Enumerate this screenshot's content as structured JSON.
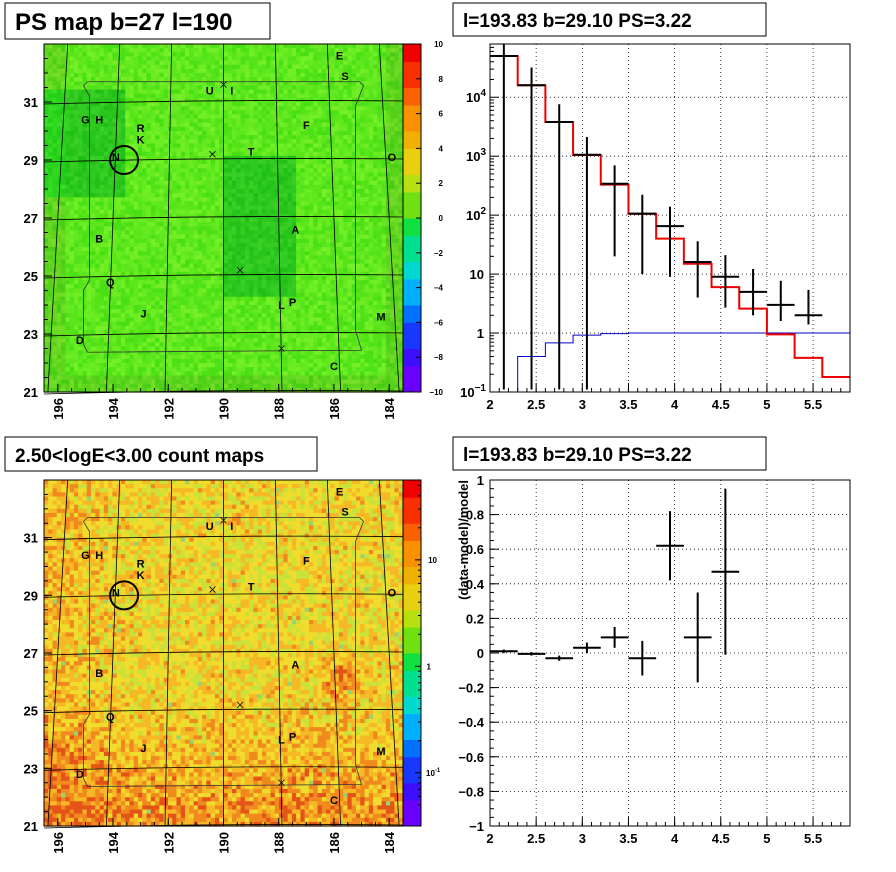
{
  "chart_data": [
    {
      "type": "heatmap",
      "title": "PS map b=27 l=190",
      "x_ticks": [
        "196",
        "194",
        "192",
        "190",
        "188",
        "186",
        "184"
      ],
      "y_ticks": [
        "21",
        "23",
        "25",
        "27",
        "29",
        "31"
      ],
      "xlim": [
        196.5,
        183.5
      ],
      "ylim": [
        21,
        33
      ],
      "colorbar_ticks": [
        "10",
        "8",
        "6",
        "4",
        "2",
        "0",
        "−2",
        "−4",
        "−6",
        "−8",
        "−10"
      ],
      "zlim": [
        -10,
        10
      ],
      "sources": [
        {
          "label": "E",
          "l": 185.8,
          "b": 32.6
        },
        {
          "label": "S",
          "l": 185.6,
          "b": 31.9
        },
        {
          "label": "U",
          "l": 190.5,
          "b": 31.4
        },
        {
          "label": "I",
          "l": 189.7,
          "b": 31.4
        },
        {
          "label": "G",
          "l": 195.0,
          "b": 30.4
        },
        {
          "label": "H",
          "l": 194.5,
          "b": 30.4
        },
        {
          "label": "R",
          "l": 193.0,
          "b": 30.1
        },
        {
          "label": "K",
          "l": 193.0,
          "b": 29.7
        },
        {
          "label": "F",
          "l": 187.0,
          "b": 30.2
        },
        {
          "label": "T",
          "l": 189.0,
          "b": 29.3
        },
        {
          "label": "O",
          "l": 183.9,
          "b": 29.1
        },
        {
          "label": "N",
          "l": 193.9,
          "b": 29.1
        },
        {
          "label": "B",
          "l": 194.5,
          "b": 26.3
        },
        {
          "label": "A",
          "l": 187.4,
          "b": 26.6
        },
        {
          "label": "Q",
          "l": 194.1,
          "b": 24.8
        },
        {
          "label": "L",
          "l": 187.9,
          "b": 24.0
        },
        {
          "label": "P",
          "l": 187.5,
          "b": 24.1
        },
        {
          "label": "J",
          "l": 192.9,
          "b": 23.7
        },
        {
          "label": "M",
          "l": 184.3,
          "b": 23.6
        },
        {
          "label": "D",
          "l": 195.2,
          "b": 22.8
        },
        {
          "label": "C",
          "l": 186.0,
          "b": 21.9
        }
      ]
    },
    {
      "type": "line",
      "title": "l=193.83 b=29.10 PS=3.22",
      "x_ticks": [
        "2",
        "2.5",
        "3",
        "3.5",
        "4",
        "4.5",
        "5",
        "5.5"
      ],
      "y_ticks": [
        "10^{-1}",
        "1",
        "10",
        "10^{2}",
        "10^{3}",
        "10^{4}"
      ],
      "xlim": [
        2,
        5.9
      ],
      "ylim": [
        0.1,
        80000
      ],
      "y_scale": "log",
      "grid": true,
      "model_hist": {
        "edges": [
          2.0,
          2.3,
          2.6,
          2.9,
          3.2,
          3.5,
          3.8,
          4.1,
          4.4,
          4.7,
          5.0,
          5.3,
          5.6,
          5.9
        ],
        "values": [
          50000,
          16000,
          3800,
          1050,
          330,
          105,
          40,
          15,
          6,
          2.6,
          0.95,
          0.38,
          0.18
        ]
      },
      "background_hist": {
        "edges": [
          2.0,
          2.3,
          2.6,
          2.9,
          3.2,
          3.5,
          3.8,
          4.1,
          4.4,
          4.7,
          5.0,
          5.3,
          5.6,
          5.9
        ],
        "values": [
          0.05,
          0.4,
          0.68,
          0.92,
          0.98,
          1,
          1,
          1,
          1,
          1,
          1,
          1,
          1
        ]
      },
      "data_points": [
        {
          "x": 2.15,
          "y": 50000,
          "yerr": [
            50000,
            50000
          ]
        },
        {
          "x": 2.45,
          "y": 16000,
          "yerr": [
            16000,
            16000
          ]
        },
        {
          "x": 2.75,
          "y": 3800,
          "yerr": [
            3800,
            3800
          ]
        },
        {
          "x": 3.05,
          "y": 1060,
          "yerr": [
            1060,
            1060
          ]
        },
        {
          "x": 3.35,
          "y": 340,
          "yerr": [
            320,
            360
          ]
        },
        {
          "x": 3.65,
          "y": 106,
          "yerr": [
            96,
            116
          ]
        },
        {
          "x": 3.95,
          "y": 65,
          "yerr": [
            56,
            74
          ]
        },
        {
          "x": 4.25,
          "y": 16,
          "yerr": [
            12,
            20
          ]
        },
        {
          "x": 4.55,
          "y": 9,
          "yerr": [
            6.3,
            12
          ]
        },
        {
          "x": 4.85,
          "y": 5,
          "yerr": [
            3,
            7.2
          ]
        },
        {
          "x": 5.15,
          "y": 3,
          "yerr": [
            1.4,
            4.7
          ]
        },
        {
          "x": 5.45,
          "y": 2,
          "yerr": [
            0.6,
            3.4
          ]
        }
      ]
    },
    {
      "type": "heatmap",
      "title": "2.50<logE<3.00 count maps",
      "x_ticks": [
        "196",
        "194",
        "192",
        "190",
        "188",
        "186",
        "184"
      ],
      "y_ticks": [
        "21",
        "23",
        "25",
        "27",
        "29",
        "31"
      ],
      "xlim": [
        196.5,
        183.5
      ],
      "ylim": [
        21,
        33
      ],
      "colorbar_ticks": [
        "10",
        "1",
        "10^{-1}"
      ],
      "z_scale": "log",
      "sources": [
        {
          "label": "E",
          "l": 185.8,
          "b": 32.6
        },
        {
          "label": "S",
          "l": 185.6,
          "b": 31.9
        },
        {
          "label": "U",
          "l": 190.5,
          "b": 31.4
        },
        {
          "label": "I",
          "l": 189.7,
          "b": 31.4
        },
        {
          "label": "G",
          "l": 195.0,
          "b": 30.4
        },
        {
          "label": "H",
          "l": 194.5,
          "b": 30.4
        },
        {
          "label": "R",
          "l": 193.0,
          "b": 30.1
        },
        {
          "label": "K",
          "l": 193.0,
          "b": 29.7
        },
        {
          "label": "F",
          "l": 187.0,
          "b": 30.2
        },
        {
          "label": "T",
          "l": 189.0,
          "b": 29.3
        },
        {
          "label": "O",
          "l": 183.9,
          "b": 29.1
        },
        {
          "label": "N",
          "l": 193.9,
          "b": 29.1
        },
        {
          "label": "B",
          "l": 194.5,
          "b": 26.3
        },
        {
          "label": "A",
          "l": 187.4,
          "b": 26.6
        },
        {
          "label": "Q",
          "l": 194.1,
          "b": 24.8
        },
        {
          "label": "L",
          "l": 187.9,
          "b": 24.0
        },
        {
          "label": "P",
          "l": 187.5,
          "b": 24.1
        },
        {
          "label": "J",
          "l": 192.9,
          "b": 23.7
        },
        {
          "label": "M",
          "l": 184.3,
          "b": 23.6
        },
        {
          "label": "D",
          "l": 195.2,
          "b": 22.8
        },
        {
          "label": "C",
          "l": 186.0,
          "b": 21.9
        }
      ]
    },
    {
      "type": "scatter",
      "title": "l=193.83 b=29.10 PS=3.22",
      "ylabel": "(data-model)/model",
      "x_ticks": [
        "2",
        "2.5",
        "3",
        "3.5",
        "4",
        "4.5",
        "5",
        "5.5"
      ],
      "y_ticks": [
        "1",
        "0.8",
        "0.6",
        "0.4",
        "0.2",
        "0",
        "−0.2",
        "−0.4",
        "−0.6",
        "−0.8",
        "−1"
      ],
      "xlim": [
        2,
        5.9
      ],
      "ylim": [
        -1,
        1
      ],
      "grid": true,
      "points": [
        {
          "x": 2.15,
          "y": 0.01,
          "yerr": 0.01
        },
        {
          "x": 2.45,
          "y": -0.005,
          "yerr": 0.01
        },
        {
          "x": 2.75,
          "y": -0.03,
          "yerr": 0.015
        },
        {
          "x": 3.05,
          "y": 0.03,
          "yerr": 0.03
        },
        {
          "x": 3.35,
          "y": 0.09,
          "yerr": 0.06
        },
        {
          "x": 3.65,
          "y": -0.03,
          "yerr": 0.1
        },
        {
          "x": 3.95,
          "y": 0.62,
          "yerr": 0.2
        },
        {
          "x": 4.25,
          "y": 0.09,
          "yerr": 0.26
        },
        {
          "x": 4.55,
          "y": 0.47,
          "yerr": 0.48
        }
      ]
    }
  ]
}
